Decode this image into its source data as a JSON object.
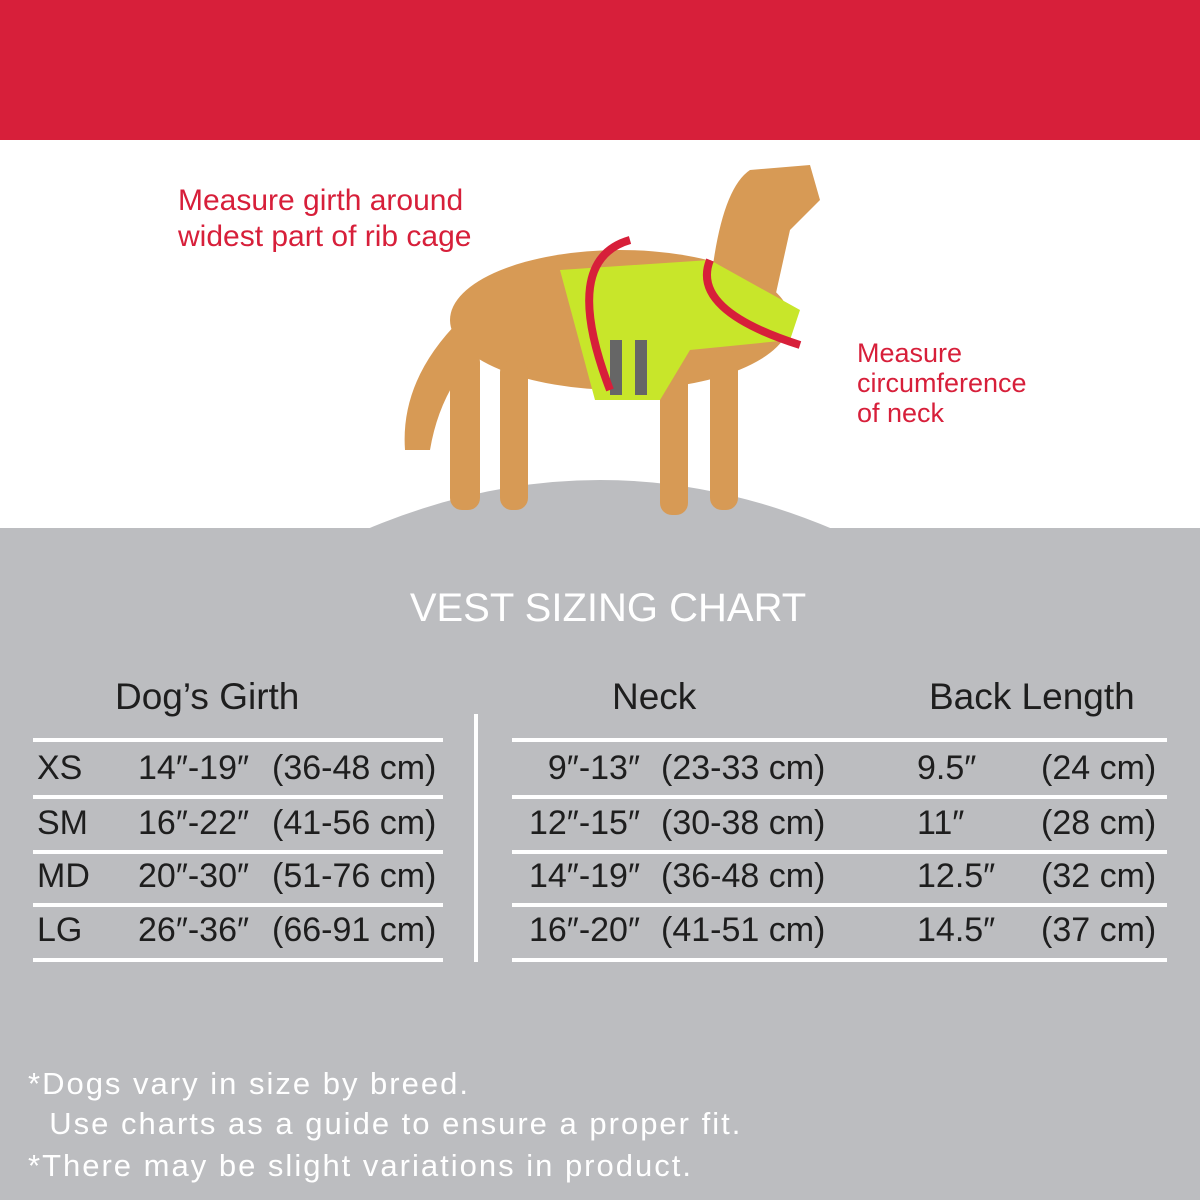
{
  "banner_color": "#d71f3a",
  "panel_color": "#bcbdc0",
  "notes": {
    "girth": [
      "Measure girth around",
      "widest part of rib cage"
    ],
    "neck": [
      "Measure",
      "circumference",
      "of neck"
    ]
  },
  "image": "golden-retriever-wearing-yellow-vest-with-red-measurement-arrows",
  "title": "VEST SIZING CHART",
  "headers": {
    "girth": "Dog’s Girth",
    "neck": "Neck",
    "back": "Back Length"
  },
  "rows": [
    {
      "size": "XS",
      "girth_in": "14″-19″",
      "girth_cm": "(36-48 cm)",
      "neck_in": "9″-13″",
      "neck_cm": "(23-33 cm)",
      "back_in": "9.5″",
      "back_cm": "(24 cm)"
    },
    {
      "size": "SM",
      "girth_in": "16″-22″",
      "girth_cm": "(41-56 cm)",
      "neck_in": "12″-15″",
      "neck_cm": "(30-38 cm)",
      "back_in": "11″",
      "back_cm": "(28 cm)"
    },
    {
      "size": "MD",
      "girth_in": "20″-30″",
      "girth_cm": "(51-76 cm)",
      "neck_in": "14″-19″",
      "neck_cm": "(36-48 cm)",
      "back_in": "12.5″",
      "back_cm": "(32 cm)"
    },
    {
      "size": "LG",
      "girth_in": "26″-36″",
      "girth_cm": "(66-91 cm)",
      "neck_in": "16″-20″",
      "neck_cm": "(41-51 cm)",
      "back_in": "14.5″",
      "back_cm": "(37 cm)"
    }
  ],
  "footnotes": [
    "*Dogs vary in size by breed.",
    "  Use charts as a guide to ensure a proper fit.",
    "*There may be slight variations in product."
  ]
}
